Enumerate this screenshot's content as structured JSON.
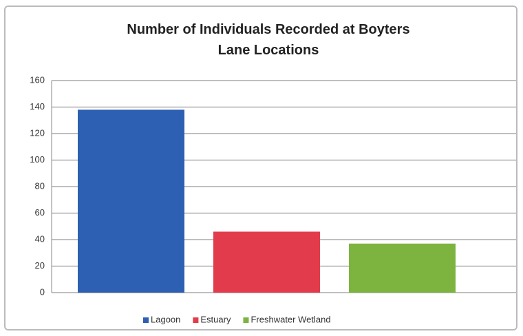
{
  "chart_data": {
    "type": "bar",
    "title": "Number of Individuals Recorded at Boyters Lane Locations",
    "categories": [
      null
    ],
    "series": [
      {
        "name": "Lagoon",
        "color": "#2d5fb2",
        "values": [
          138
        ]
      },
      {
        "name": "Estuary",
        "color": "#e23b4b",
        "values": [
          46
        ]
      },
      {
        "name": "Freshwater Wetland",
        "color": "#7db33f",
        "values": [
          37
        ]
      }
    ],
    "ylim": [
      0,
      160
    ],
    "yticks": [
      0,
      20,
      40,
      60,
      80,
      100,
      120,
      140,
      160
    ],
    "grid": true
  }
}
